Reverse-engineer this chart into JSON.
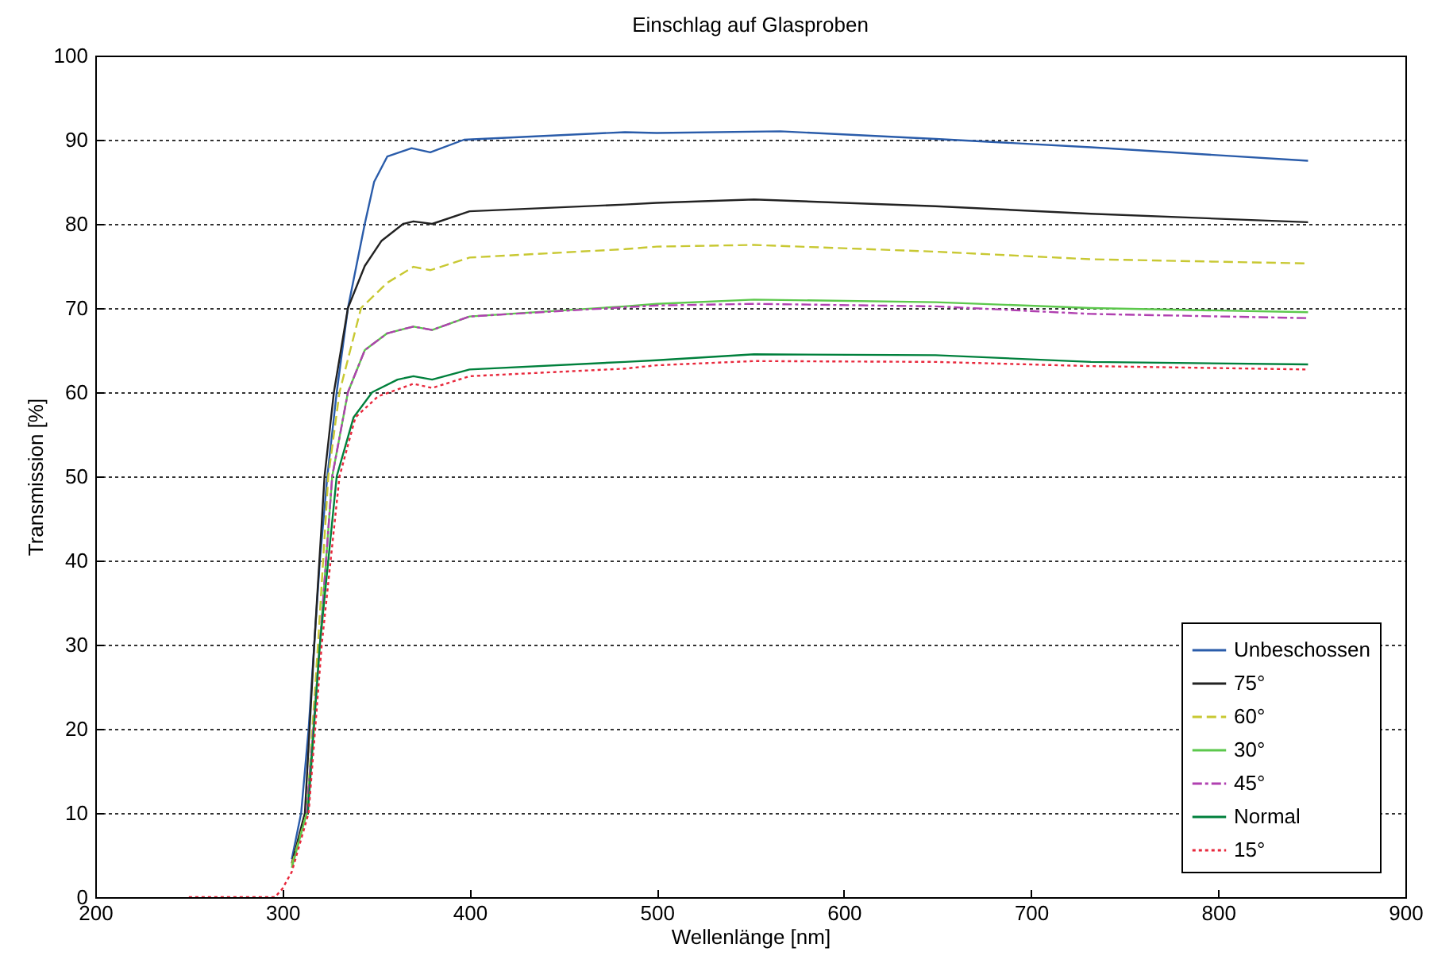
{
  "chart_data": {
    "type": "line",
    "title": "Einschlag auf Glasproben",
    "xlabel": "Wellenlänge [nm]",
    "ylabel": "Transmission [%]",
    "xlim": [
      200,
      900
    ],
    "xticks": [
      200,
      300,
      400,
      500,
      600,
      700,
      800,
      900
    ],
    "ylim": [
      0,
      100
    ],
    "yticks": [
      0,
      10,
      20,
      30,
      40,
      50,
      60,
      70,
      80,
      90,
      100
    ],
    "grid": "y",
    "legend": "bottom right",
    "series": [
      {
        "name": "Unbeschossen",
        "color": "#2a5caa",
        "line_style": "solid",
        "x": [
          305,
          310,
          314,
          317,
          320,
          324,
          329,
          335,
          344,
          349,
          356,
          369,
          379,
          397,
          483,
          500,
          566,
          649,
          732,
          848
        ],
        "values": [
          4.5,
          10,
          20,
          30,
          40,
          50,
          60,
          70,
          80,
          85,
          88,
          89,
          88.5,
          90,
          90.9,
          90.8,
          91.0,
          90.1,
          89.1,
          87.5
        ]
      },
      {
        "name": "75°",
        "color": "#222222",
        "line_style": "solid",
        "x": [
          305,
          312,
          317,
          322.5,
          327.5,
          335,
          344,
          353,
          364.5,
          370,
          380,
          400,
          483,
          500,
          552,
          649,
          732,
          848
        ],
        "values": [
          4,
          10,
          30,
          50,
          60,
          70,
          75,
          78,
          80,
          80.3,
          80,
          81.5,
          82.3,
          82.5,
          82.9,
          82.1,
          81.2,
          80.2
        ]
      },
      {
        "name": "60°",
        "color": "#c8c832",
        "line_style": "dashed",
        "x": [
          305,
          313,
          319,
          324.5,
          330.5,
          342,
          356,
          370,
          379,
          400,
          483,
          500,
          552,
          649,
          732,
          848
        ],
        "values": [
          3.8,
          10,
          30,
          50,
          60,
          70,
          73,
          74.9,
          74.5,
          76.0,
          77.0,
          77.3,
          77.5,
          76.7,
          75.8,
          75.3
        ]
      },
      {
        "name": "30°",
        "color": "#5cc84c",
        "line_style": "solid",
        "x": [
          305,
          313,
          320,
          326.6,
          335,
          344,
          356,
          370,
          380,
          400,
          483,
          500,
          552,
          649,
          732,
          848
        ],
        "values": [
          3.5,
          10,
          30,
          50,
          60,
          65,
          67,
          67.8,
          67.4,
          69.0,
          70.2,
          70.5,
          71.0,
          70.7,
          70.0,
          69.5
        ]
      },
      {
        "name": "45°",
        "color": "#b040b0",
        "line_style": "dashdot",
        "x": [
          313,
          320,
          326.6,
          335,
          344,
          356,
          370,
          380,
          400,
          483,
          500,
          552,
          649,
          732,
          848
        ],
        "values": [
          10,
          30,
          50,
          60,
          65,
          67,
          67.8,
          67.4,
          69.0,
          70.1,
          70.3,
          70.5,
          70.2,
          69.3,
          68.8
        ]
      },
      {
        "name": "Normal",
        "color": "#00803c",
        "line_style": "solid",
        "x": [
          313.6,
          320,
          329,
          338,
          348,
          361.5,
          370,
          380,
          400,
          483,
          500,
          552,
          649,
          732,
          848
        ],
        "values": [
          10,
          30,
          50,
          57,
          60,
          61.5,
          61.9,
          61.5,
          62.7,
          63.6,
          63.8,
          64.5,
          64.4,
          63.6,
          63.3
        ]
      },
      {
        "name": "15°",
        "color": "#e8283c",
        "line_style": "dotted",
        "x": [
          250,
          290,
          296,
          300,
          305,
          314,
          321,
          330.5,
          339,
          351,
          370,
          380,
          400,
          483,
          500,
          552,
          649,
          732,
          848
        ],
        "values": [
          0,
          0,
          0,
          1,
          3,
          10,
          30,
          50,
          57,
          59.5,
          61.0,
          60.5,
          61.9,
          62.8,
          63.2,
          63.7,
          63.6,
          63.1,
          62.7
        ]
      }
    ]
  }
}
